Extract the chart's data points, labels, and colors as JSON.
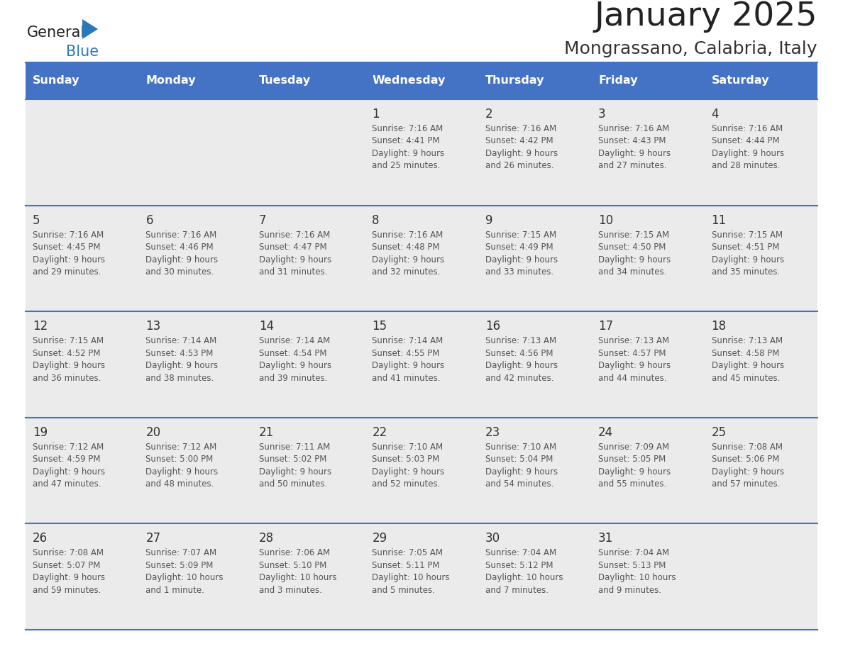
{
  "title": "January 2025",
  "subtitle": "Mongrassano, Calabria, Italy",
  "header_color": "#4472C4",
  "header_text_color": "#FFFFFF",
  "cell_bg": "#EBEBEB",
  "cell_bg_white": "#FFFFFF",
  "day_headers": [
    "Sunday",
    "Monday",
    "Tuesday",
    "Wednesday",
    "Thursday",
    "Friday",
    "Saturday"
  ],
  "title_color": "#222222",
  "subtitle_color": "#333333",
  "line_color": "#4472C4",
  "day_number_color": "#333333",
  "cell_text_color": "#555555",
  "logo_general_color": "#222222",
  "logo_blue_color": "#2878BE",
  "logo_triangle_color": "#2878BE",
  "weeks": [
    [
      {
        "day": "",
        "info": ""
      },
      {
        "day": "",
        "info": ""
      },
      {
        "day": "",
        "info": ""
      },
      {
        "day": "1",
        "info": "Sunrise: 7:16 AM\nSunset: 4:41 PM\nDaylight: 9 hours\nand 25 minutes."
      },
      {
        "day": "2",
        "info": "Sunrise: 7:16 AM\nSunset: 4:42 PM\nDaylight: 9 hours\nand 26 minutes."
      },
      {
        "day": "3",
        "info": "Sunrise: 7:16 AM\nSunset: 4:43 PM\nDaylight: 9 hours\nand 27 minutes."
      },
      {
        "day": "4",
        "info": "Sunrise: 7:16 AM\nSunset: 4:44 PM\nDaylight: 9 hours\nand 28 minutes."
      }
    ],
    [
      {
        "day": "5",
        "info": "Sunrise: 7:16 AM\nSunset: 4:45 PM\nDaylight: 9 hours\nand 29 minutes."
      },
      {
        "day": "6",
        "info": "Sunrise: 7:16 AM\nSunset: 4:46 PM\nDaylight: 9 hours\nand 30 minutes."
      },
      {
        "day": "7",
        "info": "Sunrise: 7:16 AM\nSunset: 4:47 PM\nDaylight: 9 hours\nand 31 minutes."
      },
      {
        "day": "8",
        "info": "Sunrise: 7:16 AM\nSunset: 4:48 PM\nDaylight: 9 hours\nand 32 minutes."
      },
      {
        "day": "9",
        "info": "Sunrise: 7:15 AM\nSunset: 4:49 PM\nDaylight: 9 hours\nand 33 minutes."
      },
      {
        "day": "10",
        "info": "Sunrise: 7:15 AM\nSunset: 4:50 PM\nDaylight: 9 hours\nand 34 minutes."
      },
      {
        "day": "11",
        "info": "Sunrise: 7:15 AM\nSunset: 4:51 PM\nDaylight: 9 hours\nand 35 minutes."
      }
    ],
    [
      {
        "day": "12",
        "info": "Sunrise: 7:15 AM\nSunset: 4:52 PM\nDaylight: 9 hours\nand 36 minutes."
      },
      {
        "day": "13",
        "info": "Sunrise: 7:14 AM\nSunset: 4:53 PM\nDaylight: 9 hours\nand 38 minutes."
      },
      {
        "day": "14",
        "info": "Sunrise: 7:14 AM\nSunset: 4:54 PM\nDaylight: 9 hours\nand 39 minutes."
      },
      {
        "day": "15",
        "info": "Sunrise: 7:14 AM\nSunset: 4:55 PM\nDaylight: 9 hours\nand 41 minutes."
      },
      {
        "day": "16",
        "info": "Sunrise: 7:13 AM\nSunset: 4:56 PM\nDaylight: 9 hours\nand 42 minutes."
      },
      {
        "day": "17",
        "info": "Sunrise: 7:13 AM\nSunset: 4:57 PM\nDaylight: 9 hours\nand 44 minutes."
      },
      {
        "day": "18",
        "info": "Sunrise: 7:13 AM\nSunset: 4:58 PM\nDaylight: 9 hours\nand 45 minutes."
      }
    ],
    [
      {
        "day": "19",
        "info": "Sunrise: 7:12 AM\nSunset: 4:59 PM\nDaylight: 9 hours\nand 47 minutes."
      },
      {
        "day": "20",
        "info": "Sunrise: 7:12 AM\nSunset: 5:00 PM\nDaylight: 9 hours\nand 48 minutes."
      },
      {
        "day": "21",
        "info": "Sunrise: 7:11 AM\nSunset: 5:02 PM\nDaylight: 9 hours\nand 50 minutes."
      },
      {
        "day": "22",
        "info": "Sunrise: 7:10 AM\nSunset: 5:03 PM\nDaylight: 9 hours\nand 52 minutes."
      },
      {
        "day": "23",
        "info": "Sunrise: 7:10 AM\nSunset: 5:04 PM\nDaylight: 9 hours\nand 54 minutes."
      },
      {
        "day": "24",
        "info": "Sunrise: 7:09 AM\nSunset: 5:05 PM\nDaylight: 9 hours\nand 55 minutes."
      },
      {
        "day": "25",
        "info": "Sunrise: 7:08 AM\nSunset: 5:06 PM\nDaylight: 9 hours\nand 57 minutes."
      }
    ],
    [
      {
        "day": "26",
        "info": "Sunrise: 7:08 AM\nSunset: 5:07 PM\nDaylight: 9 hours\nand 59 minutes."
      },
      {
        "day": "27",
        "info": "Sunrise: 7:07 AM\nSunset: 5:09 PM\nDaylight: 10 hours\nand 1 minute."
      },
      {
        "day": "28",
        "info": "Sunrise: 7:06 AM\nSunset: 5:10 PM\nDaylight: 10 hours\nand 3 minutes."
      },
      {
        "day": "29",
        "info": "Sunrise: 7:05 AM\nSunset: 5:11 PM\nDaylight: 10 hours\nand 5 minutes."
      },
      {
        "day": "30",
        "info": "Sunrise: 7:04 AM\nSunset: 5:12 PM\nDaylight: 10 hours\nand 7 minutes."
      },
      {
        "day": "31",
        "info": "Sunrise: 7:04 AM\nSunset: 5:13 PM\nDaylight: 10 hours\nand 9 minutes."
      },
      {
        "day": "",
        "info": ""
      }
    ]
  ]
}
